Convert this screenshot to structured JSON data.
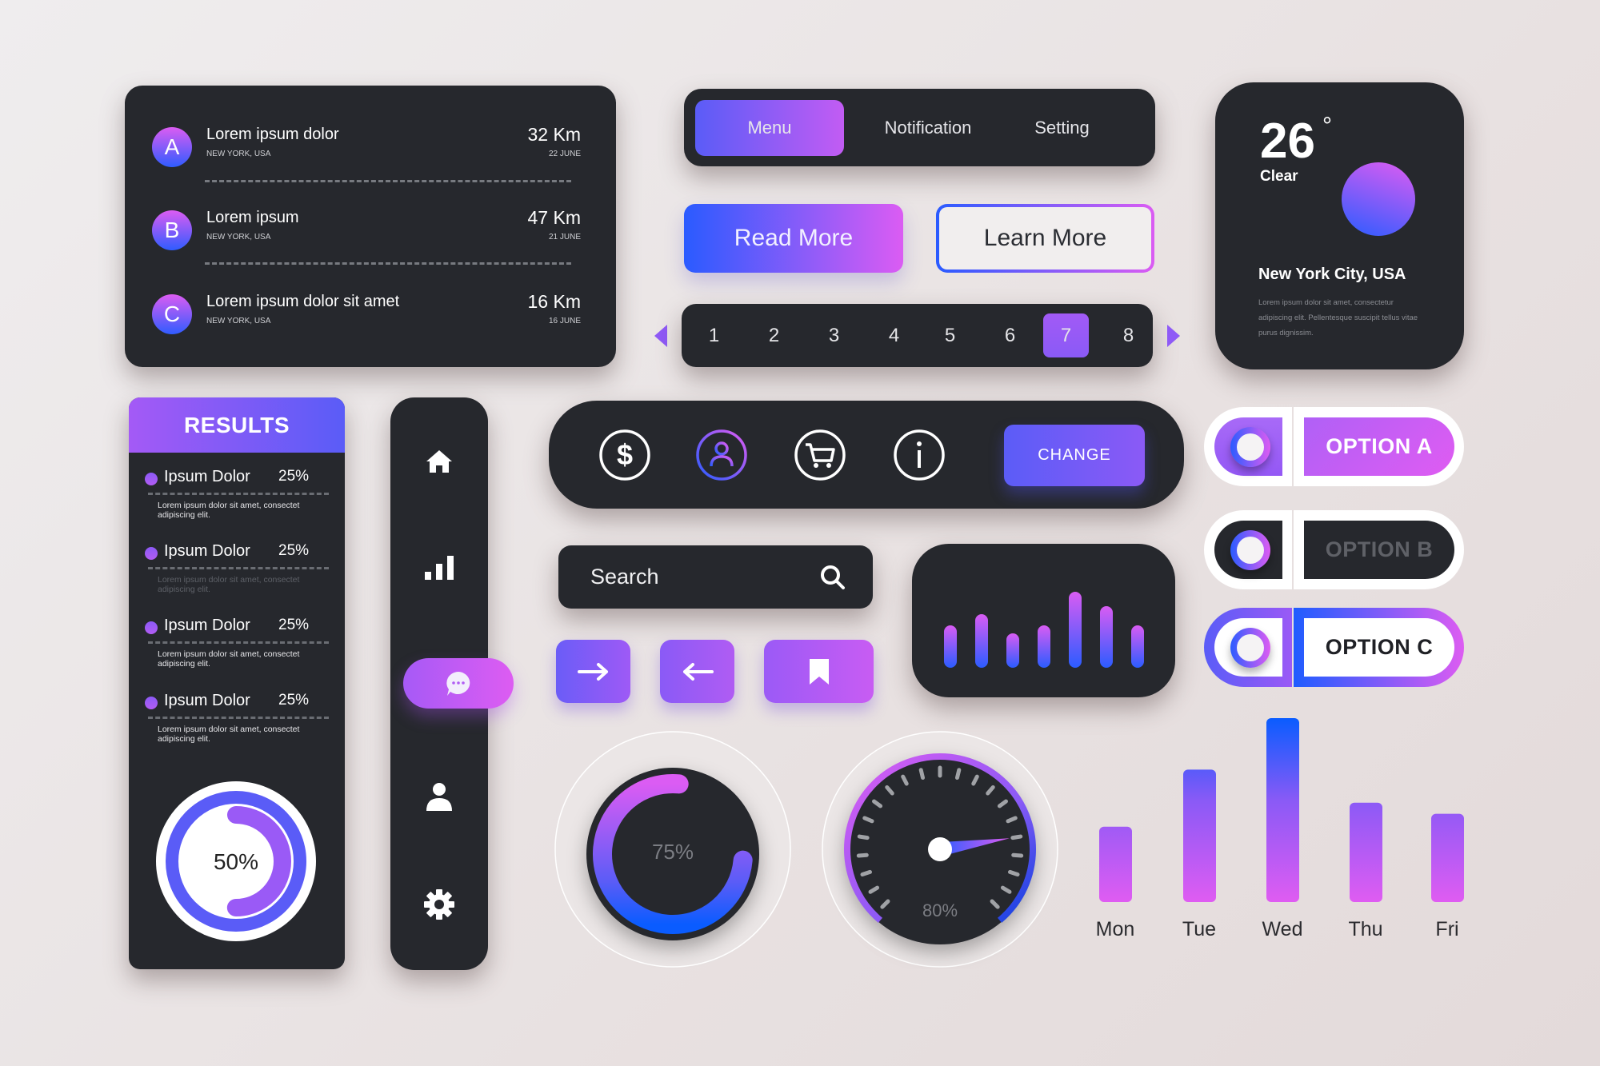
{
  "locations": [
    {
      "badge": "A",
      "title": "Lorem ipsum dolor",
      "subtitle": "NEW YORK, USA",
      "distance": "32 Km",
      "date": "22 JUNE"
    },
    {
      "badge": "B",
      "title": "Lorem ipsum",
      "subtitle": "NEW YORK, USA",
      "distance": "47 Km",
      "date": "21 JUNE"
    },
    {
      "badge": "C",
      "title": "Lorem ipsum dolor sit amet",
      "subtitle": "NEW YORK, USA",
      "distance": "16 Km",
      "date": "16 JUNE"
    }
  ],
  "tabs": [
    {
      "label": "Menu",
      "active": true
    },
    {
      "label": "Notification",
      "active": false
    },
    {
      "label": "Setting",
      "active": false
    }
  ],
  "buttons": {
    "read_more": "Read More",
    "learn_more": "Learn More",
    "change": "CHANGE"
  },
  "pagination": {
    "pages": [
      "1",
      "2",
      "3",
      "4",
      "5",
      "6",
      "7",
      "8"
    ],
    "current": "7"
  },
  "weather": {
    "temperature": "26",
    "degree": "°",
    "condition": "Clear",
    "city": "New York City, USA",
    "description": "Lorem ipsum dolor sit amet, consectetur adipiscing elit. Pellentesque suscipit tellus vitae purus dignissim."
  },
  "results": {
    "title": "RESULTS",
    "items": [
      {
        "label": "Ipsum Dolor",
        "percent": "25%",
        "description": "Lorem ipsum dolor sit amet, consectet adipiscing elit.",
        "dimmed": false
      },
      {
        "label": "Ipsum Dolor",
        "percent": "25%",
        "description": "Lorem ipsum dolor sit amet, consectet adipiscing elit.",
        "dimmed": true
      },
      {
        "label": "Ipsum Dolor",
        "percent": "25%",
        "description": "Lorem ipsum dolor sit amet, consectet adipiscing elit.",
        "dimmed": false
      },
      {
        "label": "Ipsum Dolor",
        "percent": "25%",
        "description": "Lorem ipsum dolor sit amet, consectet adipiscing elit.",
        "dimmed": false
      }
    ],
    "donut_label": "50%",
    "donut_value": 50
  },
  "sidebar": {
    "items": [
      "home-icon",
      "bar-chart-icon",
      "chat-icon",
      "user-icon",
      "gear-icon"
    ],
    "active": "chat-icon"
  },
  "icon_bar": {
    "icons": [
      "dollar-icon",
      "user-icon",
      "cart-icon",
      "info-icon"
    ],
    "active": "user-icon"
  },
  "search": {
    "placeholder": "Search"
  },
  "action_icons": [
    "arrow-right-icon",
    "arrow-left-icon",
    "bookmark-icon"
  ],
  "mini_chart": {
    "values": [
      53,
      67,
      43,
      53,
      95,
      77,
      53
    ]
  },
  "options": [
    {
      "label": "OPTION A",
      "state": "selected"
    },
    {
      "label": "OPTION B",
      "state": "dark"
    },
    {
      "label": "OPTION C",
      "state": "outlined"
    }
  ],
  "gauges": [
    {
      "label": "75%",
      "value": 75,
      "type": "ring"
    },
    {
      "label": "80%",
      "value": 80,
      "type": "speedometer"
    }
  ],
  "chart_data": {
    "type": "bar",
    "categories": [
      "Mon",
      "Tue",
      "Wed",
      "Thu",
      "Fri"
    ],
    "values": [
      41,
      72,
      100,
      54,
      48
    ],
    "xlabel": "",
    "ylabel": "",
    "ylim": [
      0,
      100
    ],
    "grid": false
  },
  "colors": {
    "accent_blue": "#2b5cff",
    "accent_pink": "#dd5cf2",
    "accent_purple": "#8a5af6",
    "panel_dark": "#26282d",
    "background": "#ebe5e5"
  }
}
